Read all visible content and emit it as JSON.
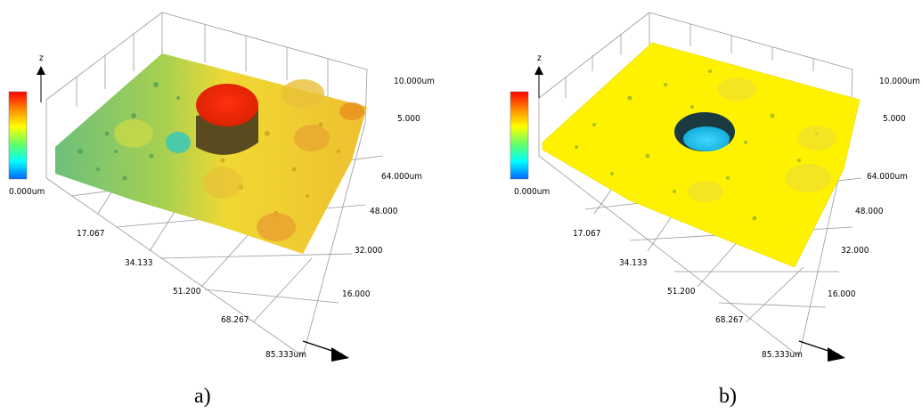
{
  "panels": [
    {
      "id": "a",
      "caption": "a)",
      "z_axis_label": "z",
      "colorbar": {
        "min_label": "0.000um",
        "colors": [
          "#ff0000",
          "#ff8800",
          "#ffff00",
          "#66ff66",
          "#00ffff",
          "#0066ff"
        ]
      },
      "z_ticks": [
        "10.000um",
        "5.000"
      ],
      "y_ticks": [
        "64.000um",
        "48.000",
        "32.000",
        "16.000"
      ],
      "x_ticks": [
        "17.067",
        "34.133",
        "51.200",
        "68.267",
        "85.333um"
      ],
      "surface_colors": {
        "base": "#f0d832",
        "left": "#7cc86a",
        "feature": "#e83010",
        "feature_shadow": "#6a5a20"
      }
    },
    {
      "id": "b",
      "caption": "b)",
      "z_axis_label": "z",
      "colorbar": {
        "min_label": "0.000um",
        "colors": [
          "#ff0000",
          "#ff8800",
          "#ffff00",
          "#66ff66",
          "#00ffff",
          "#0066ff"
        ]
      },
      "z_ticks": [
        "10.000um",
        "5.000"
      ],
      "y_ticks": [
        "64.000um",
        "48.000",
        "32.000",
        "16.000"
      ],
      "x_ticks": [
        "17.067",
        "34.133",
        "51.200",
        "68.267",
        "85.333um"
      ],
      "surface_colors": {
        "base": "#fff200",
        "feature": "#20c8f0",
        "feature_shadow": "#1a3a40"
      }
    }
  ]
}
